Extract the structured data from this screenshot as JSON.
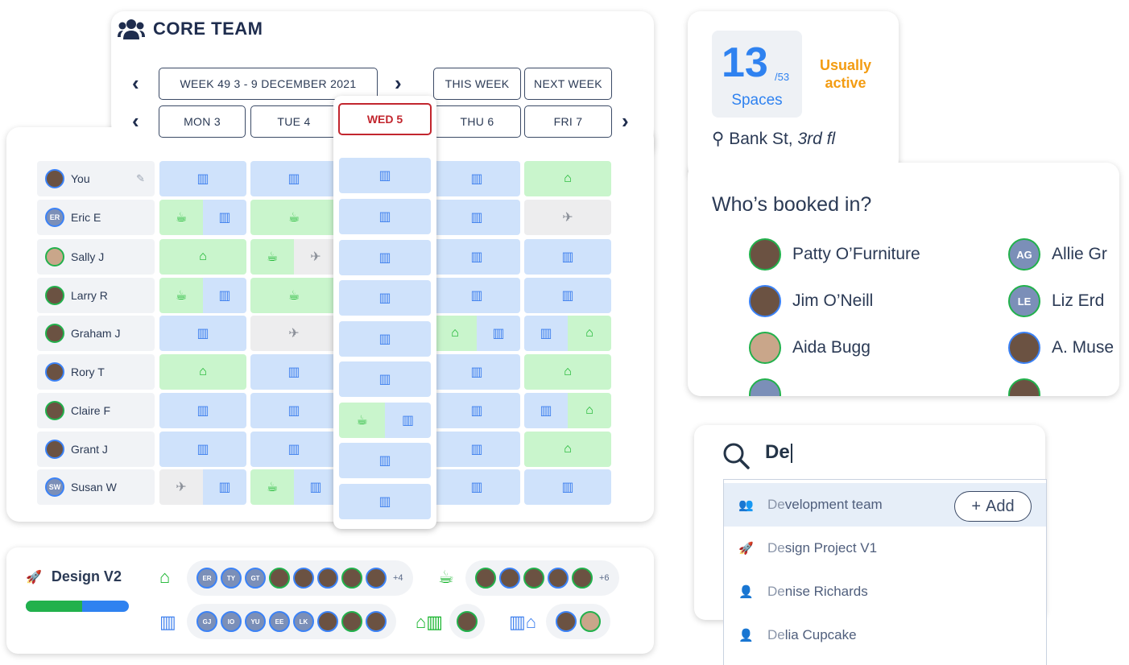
{
  "core_team": {
    "title": "CORE TEAM",
    "week_label": "WEEK 49   3 - 9 DECEMBER 2021",
    "this_week": "THIS WEEK",
    "next_week": "NEXT WEEK",
    "days": [
      "MON 3",
      "TUE 4",
      "WED 5",
      "THU 6",
      "FRI 7"
    ],
    "people": [
      {
        "name": "You",
        "initials": ""
      },
      {
        "name": "Eric E",
        "initials": "ER"
      },
      {
        "name": "Sally J",
        "initials": ""
      },
      {
        "name": "Larry R",
        "initials": ""
      },
      {
        "name": "Graham J",
        "initials": ""
      },
      {
        "name": "Rory T",
        "initials": ""
      },
      {
        "name": "Claire F",
        "initials": ""
      },
      {
        "name": "Grant J",
        "initials": ""
      },
      {
        "name": "Susan W",
        "initials": "SW"
      }
    ],
    "legend_icons": {
      "office": "building-icon",
      "home": "home-icon",
      "travel": "plane-icon",
      "coffee": "coffee-location-icon"
    },
    "colors": {
      "office": "#cfe2fb",
      "home": "#c9f5cc",
      "away": "#ededee",
      "today_border": "#c2262e"
    }
  },
  "spaces": {
    "count": "13",
    "total": "/53",
    "label": "Spaces",
    "activity": "Usually active",
    "location_main": "Bank St, ",
    "location_floor": "3rd fl",
    "who_title": "Who’s booked in?",
    "booked": [
      {
        "name": "Patty O’Furniture",
        "initials": ""
      },
      {
        "name": "Jim O’Neill",
        "initials": ""
      },
      {
        "name": "Aida Bugg",
        "initials": ""
      },
      {
        "name": "Allie Gr",
        "initials": "AG"
      },
      {
        "name": "Liz Erd",
        "initials": "LE"
      },
      {
        "name": "A. Muse",
        "initials": ""
      }
    ]
  },
  "search": {
    "query": "De",
    "results": [
      {
        "match": "De",
        "rest": "velopment team",
        "icon": "team-icon"
      },
      {
        "match": "De",
        "rest": "sign Project V1",
        "icon": "rocket-icon"
      },
      {
        "match": "De",
        "rest": "nise Richards",
        "icon": "person-icon"
      },
      {
        "match": "De",
        "rest": "lia Cupcake",
        "icon": "person-icon"
      }
    ],
    "add_label": "Add"
  },
  "design": {
    "title": "Design V2",
    "progress_fraction": 0.55,
    "home_initials": [
      "ER",
      "TY",
      "GT"
    ],
    "home_more": "+4",
    "coffee_more": "+6",
    "office_initials": [
      "GJ",
      "IO",
      "YU",
      "EE",
      "LK"
    ]
  }
}
